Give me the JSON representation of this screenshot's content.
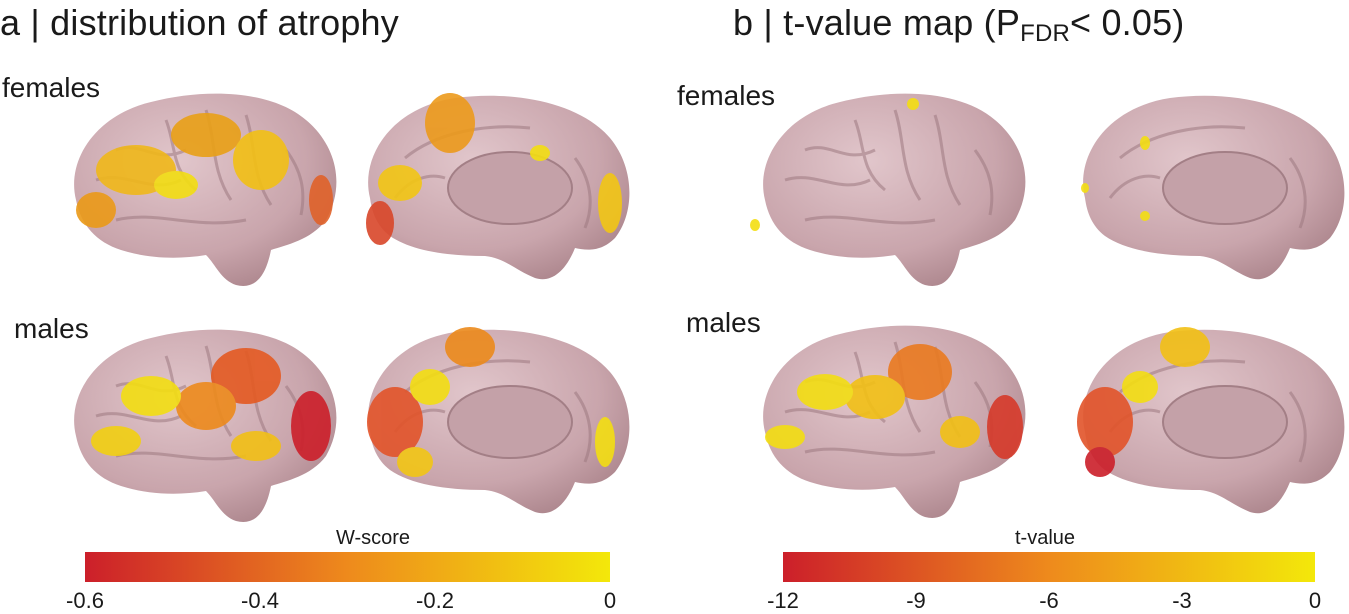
{
  "panel_a": {
    "title": "a | distribution  of atrophy",
    "rows": [
      "females",
      "males"
    ],
    "colorbar": {
      "label": "W-score",
      "ticks": [
        "-0.6",
        "-0.4",
        "-0.2",
        "0"
      ]
    }
  },
  "panel_b": {
    "title_main": "b | t-value map (P",
    "title_sub": "FDR",
    "title_end": "<  0.05)",
    "rows": [
      "females",
      "males"
    ],
    "colorbar": {
      "label": "t-value",
      "ticks": [
        "-12",
        "-9",
        "-6",
        "-3",
        "0"
      ]
    }
  },
  "colors": {
    "cortex": "#cfaeb4",
    "scale_low": "#cc1f2a",
    "scale_mid": "#ee8a1c",
    "scale_high": "#f3e80a"
  }
}
